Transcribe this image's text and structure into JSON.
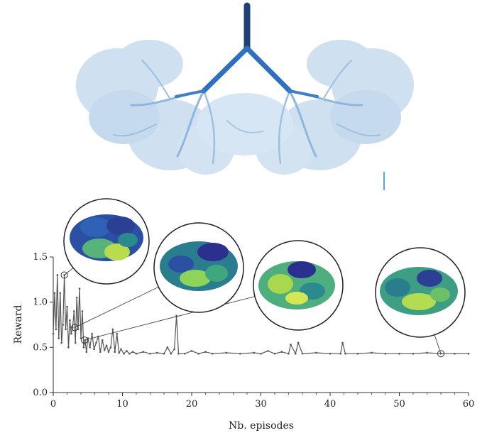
{
  "colors": {
    "trunk": "#1f3f78",
    "main_branch": "#2f6fc0",
    "canopy": "#a9c8e6",
    "canopy_dark": "#6f9fcf",
    "reward_line": "#555555",
    "axis": "#333333",
    "heat_low": "#2b2f8e",
    "heat_mid": "#2a8a8e",
    "heat_high": "#c6e24a"
  },
  "chart_data": {
    "type": "line",
    "xlabel": "Nb. episodes",
    "ylabel": "Reward",
    "xlim": [
      0,
      60
    ],
    "ylim": [
      0,
      1.5
    ],
    "xticks": [
      0,
      10,
      20,
      30,
      40,
      50,
      60
    ],
    "yticks": [
      0.0,
      0.5,
      1.0,
      1.5
    ],
    "xtick_labels": [
      "0",
      "10",
      "20",
      "30",
      "40",
      "50",
      "60"
    ],
    "ytick_labels": [
      "0.0",
      "0.5",
      "1.0",
      "1.5"
    ],
    "grid": false,
    "series": [
      {
        "x": [
          0,
          0.2,
          0.4,
          0.6,
          0.8,
          1.0,
          1.2,
          1.4,
          1.6,
          1.8,
          2.0,
          2.2,
          2.4,
          2.6,
          2.8,
          3.0,
          3.2,
          3.4,
          3.6,
          3.8,
          4.0,
          4.2,
          4.4,
          4.6,
          4.8,
          5.0,
          5.3,
          5.6,
          5.9,
          6.2,
          6.5,
          6.8,
          7.1,
          7.4,
          7.7,
          8.0,
          8.3,
          8.6,
          8.9,
          9.2,
          9.5,
          9.8,
          10.2,
          10.6,
          11.0,
          11.5,
          12.0,
          13.0,
          14.0,
          15.0,
          16.0,
          16.5,
          17.0,
          17.5,
          17.8,
          18.1,
          19.0,
          20.0,
          21.0,
          22.0,
          23.0,
          25.0,
          27.0,
          29.0,
          30.0,
          31.0,
          32.0,
          33.0,
          34.0,
          34.3,
          35.0,
          35.4,
          36.0,
          38.0,
          40.0,
          41.5,
          41.8,
          42.2,
          44.0,
          46.0,
          48.0,
          50.0,
          52.0,
          54.0,
          56.0,
          58.0,
          60.0
        ],
        "y": [
          0.65,
          1.1,
          0.7,
          1.3,
          0.6,
          1.1,
          0.55,
          0.75,
          1.3,
          0.7,
          0.95,
          0.5,
          0.8,
          0.65,
          0.72,
          0.9,
          0.55,
          1.05,
          0.7,
          1.15,
          0.6,
          0.9,
          0.5,
          0.58,
          0.45,
          0.6,
          0.5,
          0.65,
          0.48,
          0.55,
          0.62,
          0.45,
          0.58,
          0.47,
          0.52,
          0.45,
          0.5,
          0.7,
          0.45,
          0.65,
          0.44,
          0.48,
          0.43,
          0.46,
          0.43,
          0.45,
          0.43,
          0.45,
          0.43,
          0.44,
          0.43,
          0.5,
          0.43,
          0.48,
          0.85,
          0.43,
          0.43,
          0.46,
          0.43,
          0.45,
          0.43,
          0.44,
          0.43,
          0.44,
          0.43,
          0.46,
          0.43,
          0.45,
          0.43,
          0.53,
          0.43,
          0.55,
          0.43,
          0.44,
          0.43,
          0.43,
          0.55,
          0.43,
          0.43,
          0.44,
          0.43,
          0.43,
          0.43,
          0.44,
          0.43,
          0.43,
          0.43
        ]
      }
    ],
    "highlighted_points": [
      {
        "x": 1.6,
        "y": 1.3
      },
      {
        "x": 3.1,
        "y": 0.72
      },
      {
        "x": 4.5,
        "y": 0.58
      },
      {
        "x": 56.0,
        "y": 0.43
      }
    ]
  }
}
